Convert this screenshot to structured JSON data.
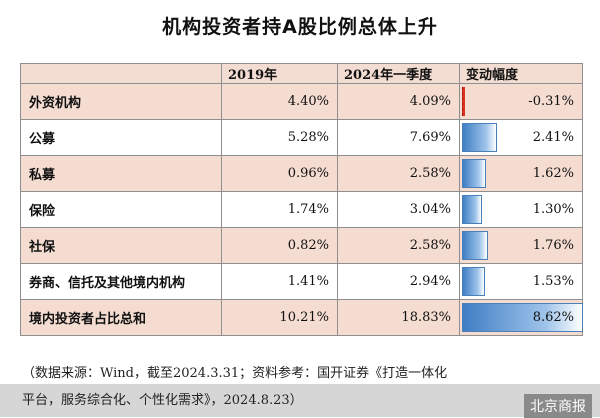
{
  "title": "机构投资者持A股比例总体上升",
  "chart_data": {
    "type": "table",
    "columns": [
      "",
      "2019年",
      "2024年一季度",
      "变动幅度"
    ],
    "rows": [
      {
        "name": "外资机构",
        "y2019": "4.40%",
        "y2024q1": "4.09%",
        "change": "-0.31%",
        "change_value": -0.31
      },
      {
        "name": "公募",
        "y2019": "5.28%",
        "y2024q1": "7.69%",
        "change": "2.41%",
        "change_value": 2.41
      },
      {
        "name": "私募",
        "y2019": "0.96%",
        "y2024q1": "2.58%",
        "change": "1.62%",
        "change_value": 1.62
      },
      {
        "name": "保险",
        "y2019": "1.74%",
        "y2024q1": "3.04%",
        "change": "1.30%",
        "change_value": 1.3
      },
      {
        "name": "社保",
        "y2019": "0.82%",
        "y2024q1": "2.58%",
        "change": "1.76%",
        "change_value": 1.76
      },
      {
        "name": "券商、信托及其他境内机构",
        "y2019": "1.41%",
        "y2024q1": "2.94%",
        "change": "1.53%",
        "change_value": 1.53
      },
      {
        "name": "境内投资者占比总和",
        "y2019": "10.21%",
        "y2024q1": "18.83%",
        "change": "8.62%",
        "change_value": 8.62
      }
    ],
    "bar_max": 8.62
  },
  "source_line1": "（数据来源：Wind，截至2024.3.31；资料参考：国开证券《打造一体化",
  "source_line2": "平台，服务综合化、个性化需求》，2024.8.23）",
  "brand": "北京商报",
  "colors": {
    "header_bg": "#f3ddd2",
    "odd_row_bg": "#f4dcd1",
    "bar": "#3f7ec4",
    "negative_bar": "#d9331f"
  }
}
